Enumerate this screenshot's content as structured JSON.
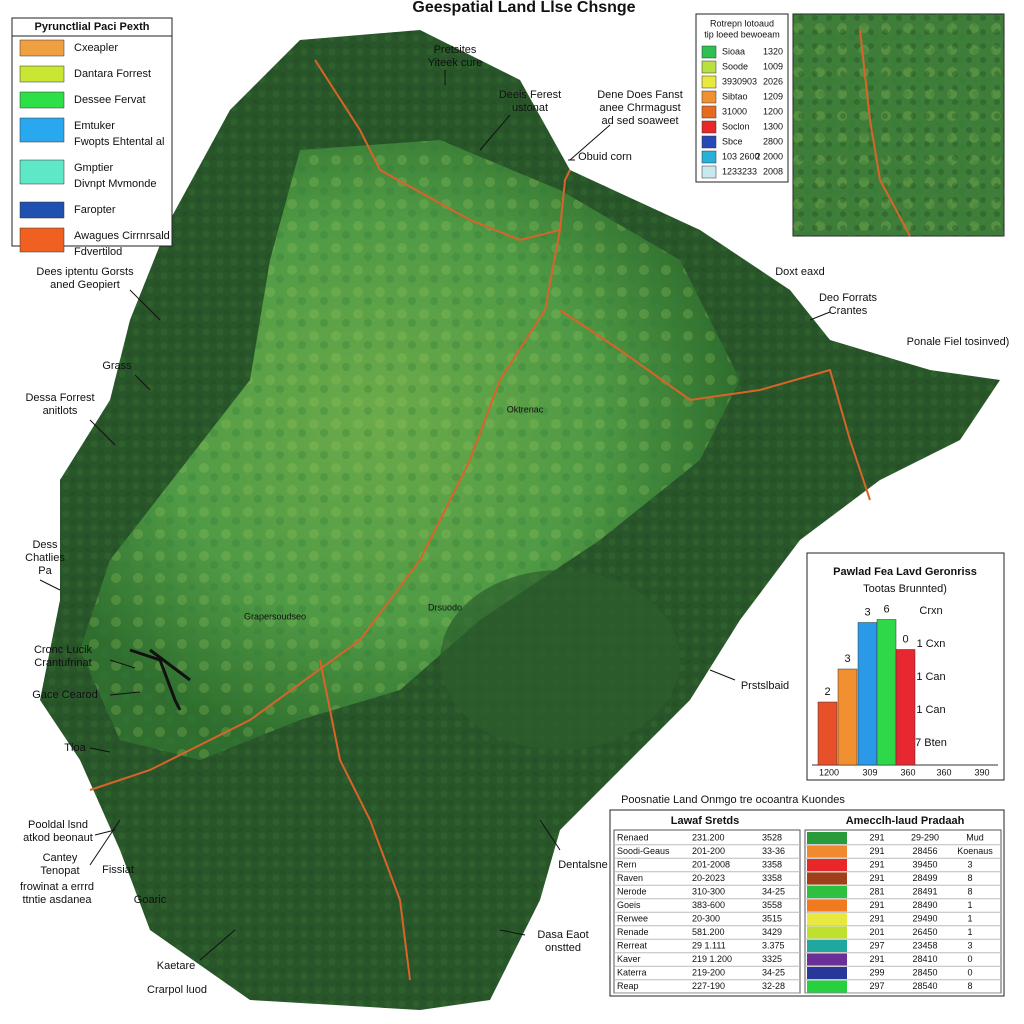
{
  "title": "Geespatial Land Llse Chsnge",
  "legend": {
    "title": "Pyrunctlial Paci Pexth",
    "items": [
      {
        "color": "#f0a040",
        "lines": [
          "Cxeapler"
        ]
      },
      {
        "color": "#c8e632",
        "lines": [
          "Dantara Forrest"
        ]
      },
      {
        "color": "#2ee048",
        "lines": [
          "Dessee Fervat"
        ]
      },
      {
        "color": "#29a8f0",
        "lines": [
          "Emtuker",
          "Fwopts Ehtental al"
        ]
      },
      {
        "color": "#5fe8c8",
        "lines": [
          "Gmptier",
          "Divnpt Mvmonde"
        ]
      },
      {
        "color": "#2050b0",
        "lines": [
          "Faropter"
        ]
      },
      {
        "color": "#f06020",
        "lines": [
          "Awagues Cirrnrsald",
          "Fdvertilod"
        ]
      }
    ]
  },
  "inset_legend": {
    "title": [
      "Rotrepn lotoaud",
      "tip loeed bewoeam"
    ],
    "rows": [
      {
        "color": "#2ec050",
        "name": "Sioaa",
        "value": "1320"
      },
      {
        "color": "#b8e040",
        "name": "Soode",
        "value": "1009"
      },
      {
        "color": "#e8e840",
        "name": "3930903",
        "value": "2026"
      },
      {
        "color": "#f09030",
        "name": "Sibtao",
        "value": "1209"
      },
      {
        "color": "#e86a20",
        "name": "31000",
        "value": "1200"
      },
      {
        "color": "#e82828",
        "name": "Soclon",
        "value": "1300"
      },
      {
        "color": "#2848b8",
        "name": "Sbce",
        "value": "2800"
      },
      {
        "color": "#28b0d8",
        "name": "103 2600",
        "value": "2 2000"
      },
      {
        "color": "#c8e8f0",
        "name": "1233233",
        "value": "2008"
      }
    ]
  },
  "callouts": [
    {
      "lines": [
        "Pretsites",
        "Yiteek cure"
      ]
    },
    {
      "lines": [
        "Deeis Ferest",
        "ustonat"
      ]
    },
    {
      "lines": [
        "Dene Does Fanst",
        "anee Chrmagust",
        "ad sed soaweet"
      ]
    },
    {
      "lines": [
        "Obuid corn"
      ]
    },
    {
      "lines": [
        "Dees iptentu Gorsts",
        "aned Geopiert"
      ]
    },
    {
      "lines": [
        "Doxt eaxd"
      ]
    },
    {
      "lines": [
        "Deo Forrats",
        "Crantes"
      ]
    },
    {
      "lines": [
        "Ponale Fiel tosinved)"
      ]
    },
    {
      "lines": [
        "Grass"
      ]
    },
    {
      "lines": [
        "Dessa Forrest",
        "anitlots"
      ]
    },
    {
      "lines": [
        "Dess",
        "Chatlies",
        "Pa"
      ]
    },
    {
      "lines": [
        "Cronc Lucik",
        "Crantufrinat"
      ]
    },
    {
      "lines": [
        "Gace Cearod"
      ]
    },
    {
      "lines": [
        "Tloa"
      ]
    },
    {
      "lines": [
        "Pooldal lsnd",
        "atkod beonaut"
      ]
    },
    {
      "lines": [
        "Cantey",
        "Tenopat"
      ]
    },
    {
      "lines": [
        "Fissiat"
      ]
    },
    {
      "lines": [
        "frowinat a errrd",
        "ttntie asdanea"
      ]
    },
    {
      "lines": [
        "Goaric"
      ]
    },
    {
      "lines": [
        "Kaetare"
      ]
    },
    {
      "lines": [
        "Crarpol luod"
      ]
    },
    {
      "lines": [
        "Prstslbaid"
      ]
    },
    {
      "lines": [
        "Dentalsne"
      ]
    },
    {
      "lines": [
        "Dasa Eaot",
        "onstted"
      ]
    }
  ],
  "inner_labels": [
    "Oktrenac",
    "Drsuodo",
    "Grapersoudseo"
  ],
  "chart_data": {
    "type": "bar",
    "title": "Pawlad Fea Lavd Geronriss",
    "subtitle": "Tootas Brunnted)",
    "values": [
      4.2,
      6.4,
      9.5,
      9.7,
      7.7
    ],
    "colors": [
      "#e8502a",
      "#f09030",
      "#2a9ae8",
      "#2ed848",
      "#e82830"
    ],
    "bar_annotations": [
      "2",
      "3",
      "3",
      "6",
      "0"
    ],
    "right_labels": [
      "Crxn",
      "1 Cxn",
      "1 Can",
      "1 Can",
      "7 Bten"
    ],
    "x_labels": [
      "1200",
      "309",
      "360",
      "360",
      "390"
    ]
  },
  "table": {
    "caption": "Poosnatie Land Onmgo tre ocoantra Kuondes",
    "left_title": "Lawaf Sretds",
    "left_rows": [
      [
        "Renaed",
        "231.200",
        "3528"
      ],
      [
        "Soodi-Geaus",
        "201-200",
        "33-36"
      ],
      [
        "Rern",
        "201-2008",
        "3358"
      ],
      [
        "Raven",
        "20-2023",
        "3358"
      ],
      [
        "Nerode",
        "310-300",
        "34-25"
      ],
      [
        "Goeis",
        "383-600",
        "3558"
      ],
      [
        "Rerwee",
        "20-300",
        "3515"
      ],
      [
        "Renade",
        "581.200",
        "3429"
      ],
      [
        "Rerreat",
        "29 1.111",
        "3.375"
      ],
      [
        "Kaver",
        "219 1.200",
        "3325"
      ],
      [
        "Katerra",
        "219-200",
        "34-25"
      ],
      [
        "Reap",
        "227-190",
        "32-28"
      ]
    ],
    "right_title": "Amecclh-laud Pradaah",
    "right_header": [
      "Mud",
      "Koenaus"
    ],
    "right_rows": [
      {
        "color": "#2a9a3a",
        "cells": [
          "291",
          "29-290"
        ]
      },
      {
        "color": "#f08a30",
        "cells": [
          "291",
          "28456"
        ]
      },
      {
        "color": "#e82828",
        "cells": [
          "291",
          "39450",
          "3"
        ]
      },
      {
        "color": "#a04018",
        "cells": [
          "291",
          "28499",
          "8"
        ]
      },
      {
        "color": "#2ec040",
        "cells": [
          "281",
          "28491",
          "8"
        ]
      },
      {
        "color": "#f07a20",
        "cells": [
          "291",
          "28490",
          "1"
        ]
      },
      {
        "color": "#e8e840",
        "cells": [
          "291",
          "29490",
          "1"
        ]
      },
      {
        "color": "#c0e030",
        "cells": [
          "201",
          "26450",
          "1"
        ]
      },
      {
        "color": "#20a8a0",
        "cells": [
          "297",
          "23458",
          "3"
        ]
      },
      {
        "color": "#6a3098",
        "cells": [
          "291",
          "28410",
          "0"
        ]
      },
      {
        "color": "#283898",
        "cells": [
          "299",
          "28450",
          "0"
        ]
      },
      {
        "color": "#28d040",
        "cells": [
          "297",
          "28540",
          "8"
        ]
      }
    ]
  }
}
